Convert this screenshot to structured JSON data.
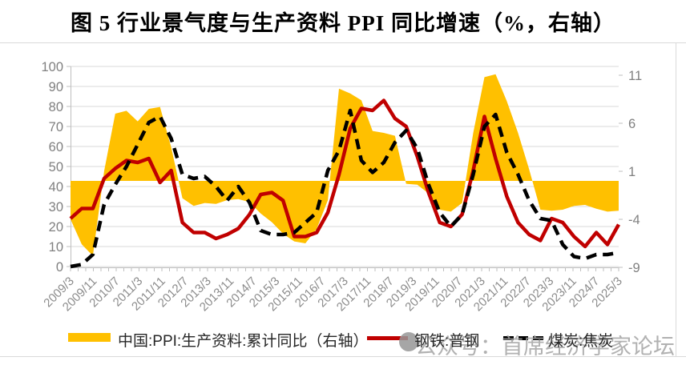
{
  "title": "图 5 行业景气度与生产资料 PPI 同比增速（%，右轴）",
  "watermark": {
    "icon": "chat-bubble-icon",
    "text": "公众号：首席经济学家论坛"
  },
  "legend": [
    {
      "label": "中国:PPI:生产资料:累计同比（右轴）",
      "swatch": "area",
      "color": "#FFC000"
    },
    {
      "label": "钢铁:普钢",
      "swatch": "line",
      "color": "#C00000"
    },
    {
      "label": "煤炭:焦炭",
      "swatch": "dashed-line",
      "color": "#000000"
    }
  ],
  "chart_data": {
    "type": "line+area",
    "title": "图 5 行业景气度与生产资料 PPI 同比增速（%，右轴）",
    "grid": "horizontal",
    "legend_position": "bottom",
    "x_frequency_months": 4,
    "x_tick_labels": [
      "2009/3",
      "2009/11",
      "2010/7",
      "2011/3",
      "2011/11",
      "2012/7",
      "2013/3",
      "2013/11",
      "2014/7",
      "2015/3",
      "2015/11",
      "2016/7",
      "2017/3",
      "2017/11",
      "2018/7",
      "2019/3",
      "2019/11",
      "2020/7",
      "2021/3",
      "2021/11",
      "2022/7",
      "2023/3",
      "2023/11",
      "2024/7",
      "2025/3"
    ],
    "x_dates": [
      "2009/3",
      "2009/7",
      "2009/11",
      "2010/3",
      "2010/7",
      "2010/11",
      "2011/3",
      "2011/7",
      "2011/11",
      "2012/3",
      "2012/7",
      "2012/11",
      "2013/3",
      "2013/7",
      "2013/11",
      "2014/3",
      "2014/7",
      "2014/11",
      "2015/3",
      "2015/7",
      "2015/11",
      "2016/3",
      "2016/7",
      "2016/11",
      "2017/3",
      "2017/7",
      "2017/11",
      "2018/3",
      "2018/7",
      "2018/11",
      "2019/3",
      "2019/7",
      "2019/11",
      "2020/3",
      "2020/7",
      "2020/11",
      "2021/3",
      "2021/7",
      "2021/11",
      "2022/3",
      "2022/7",
      "2022/11",
      "2023/3",
      "2023/7",
      "2023/11",
      "2024/3",
      "2024/7",
      "2024/11",
      "2025/3",
      "2025/7"
    ],
    "left_axis": {
      "ticks": [
        100,
        90,
        80,
        70,
        60,
        50,
        40,
        30,
        20,
        10,
        0
      ],
      "range": [
        0,
        100
      ]
    },
    "right_axis": {
      "ticks": [
        11,
        6,
        1,
        -4,
        -9
      ],
      "range": [
        -9,
        11
      ],
      "area_baseline": 0
    },
    "series": [
      {
        "name": "中国:PPI:生产资料:累计同比（右轴）",
        "axis": "right",
        "style": "area",
        "color": "#FFC000",
        "values": [
          -4.0,
          -6.6,
          -7.8,
          1.0,
          7.0,
          7.3,
          6.2,
          7.5,
          7.7,
          3.5,
          -1.8,
          -2.6,
          -2.3,
          -2.4,
          -2.0,
          -1.9,
          -2.2,
          -3.4,
          -4.3,
          -5.5,
          -6.3,
          -6.5,
          -5.0,
          -2.0,
          9.6,
          9.1,
          8.4,
          5.2,
          5.0,
          4.7,
          -0.3,
          -0.4,
          -1.3,
          -3.0,
          -3.2,
          -2.3,
          5.0,
          10.8,
          11.1,
          8.3,
          5.0,
          1.2,
          -3.0,
          -3.1,
          -3.0,
          -2.6,
          -2.5,
          -2.9,
          -3.2,
          -3.1
        ]
      },
      {
        "name": "钢铁:普钢",
        "axis": "left",
        "style": "line",
        "color": "#C00000",
        "values": [
          24,
          29,
          29,
          44,
          49,
          53,
          52,
          54,
          42,
          48,
          22,
          17,
          17,
          14,
          16,
          19,
          26,
          36,
          37,
          33,
          15,
          15,
          17,
          27,
          46,
          69,
          79,
          78,
          83,
          74,
          70,
          55,
          37,
          22,
          20,
          26,
          48,
          75,
          54,
          35,
          22,
          16,
          13,
          24,
          22,
          15,
          10,
          17,
          11,
          21
        ]
      },
      {
        "name": "煤炭:焦炭",
        "axis": "left",
        "style": "dashed",
        "color": "#000000",
        "values": [
          0,
          1,
          6,
          31,
          41,
          50,
          61,
          72,
          75,
          64,
          46,
          44,
          45,
          40,
          33,
          40,
          32,
          18,
          16,
          16,
          17,
          22,
          27,
          48,
          58,
          78,
          53,
          47,
          52,
          62,
          68,
          59,
          41,
          27,
          20,
          26,
          46,
          70,
          76,
          57,
          46,
          33,
          24,
          23,
          11,
          5,
          4,
          6,
          6,
          7
        ]
      }
    ],
    "colors": {
      "gridline": "#d9d9d9",
      "axis": "#bfbfbf",
      "tick_label": "#808080",
      "frame": "#d9d9d9"
    }
  }
}
